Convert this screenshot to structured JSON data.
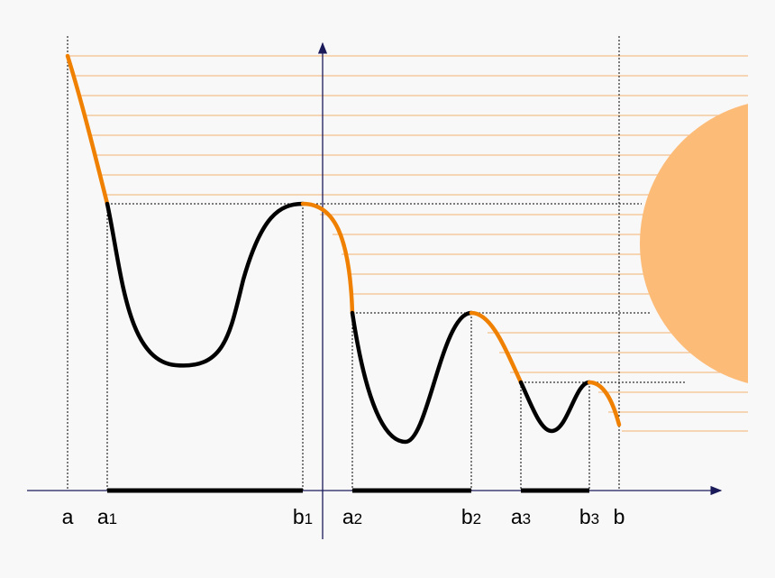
{
  "labels": [
    {
      "base": "a"
    },
    {
      "base": "a",
      "sub": "1"
    },
    {
      "base": "b",
      "sub": "1"
    },
    {
      "base": "a",
      "sub": "2"
    },
    {
      "base": "b",
      "sub": "2"
    },
    {
      "base": "a",
      "sub": "3"
    },
    {
      "base": "b",
      "sub": "3"
    },
    {
      "base": "b"
    }
  ]
}
